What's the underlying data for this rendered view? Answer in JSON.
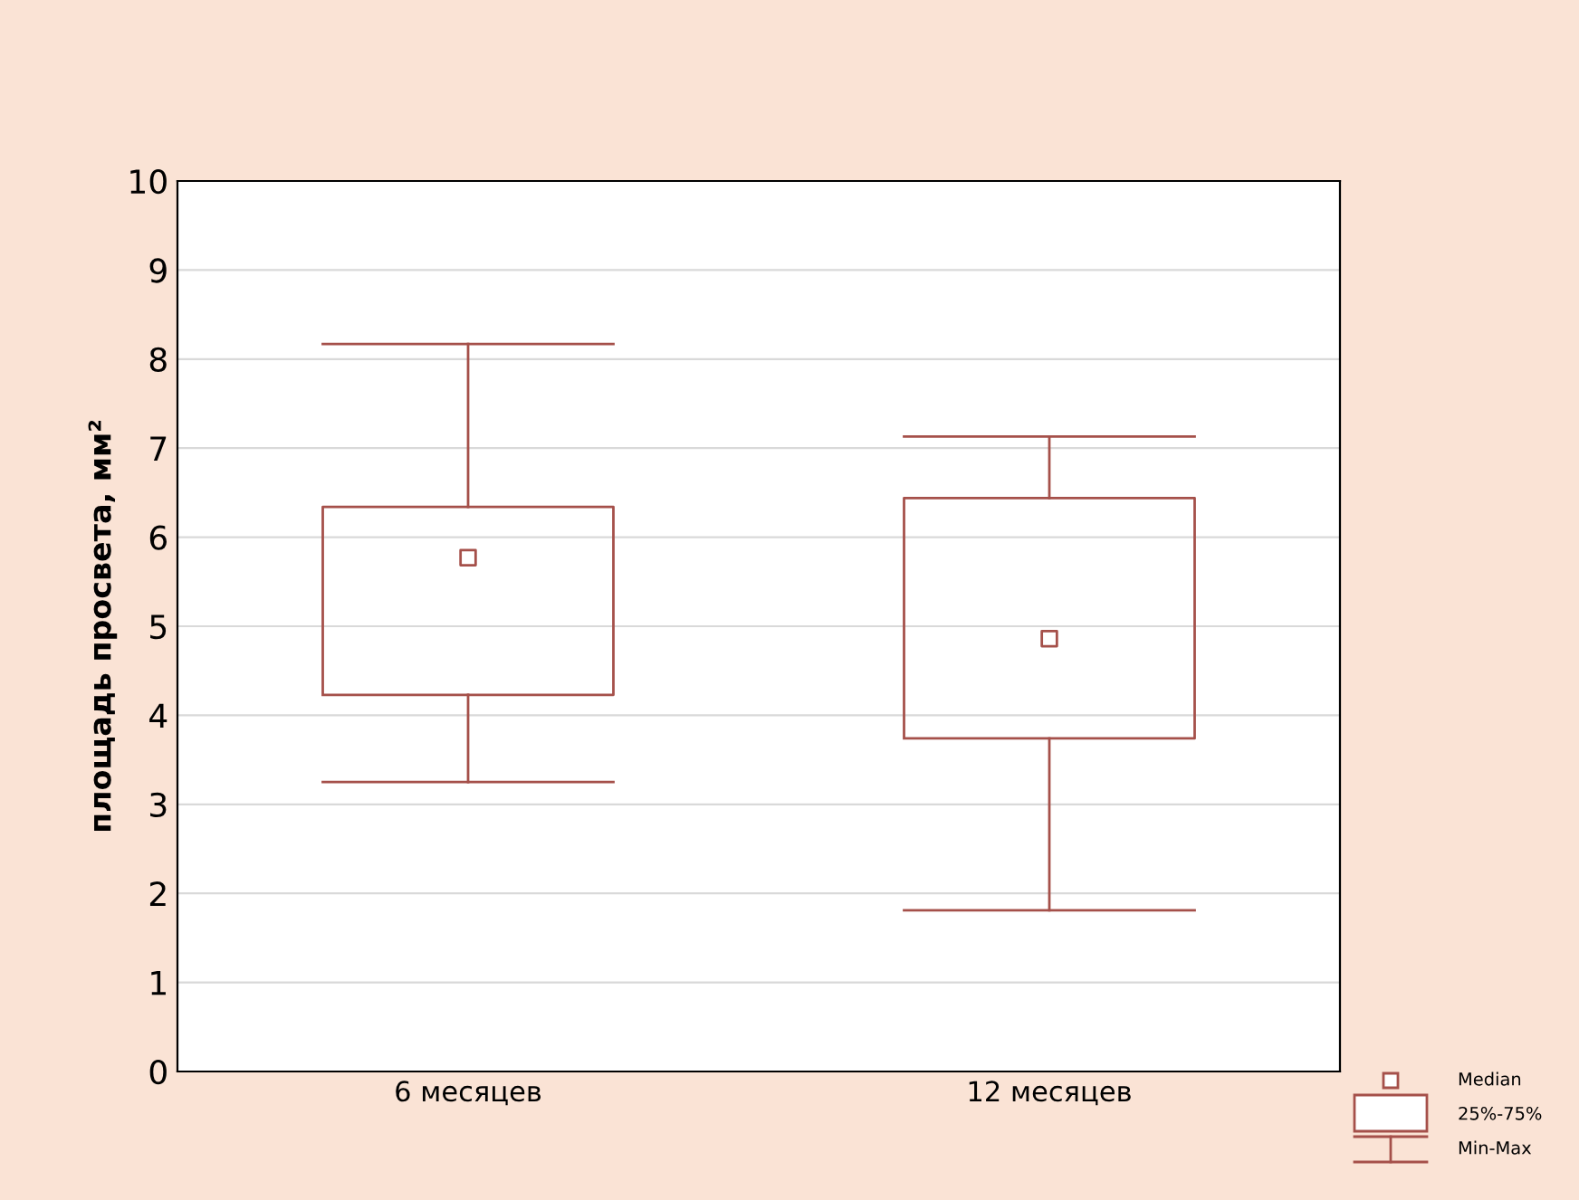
{
  "chart_data": {
    "type": "box",
    "ylabel": "площадь просвета, мм²",
    "categories": [
      "6 месяцев",
      "12 месяцев"
    ],
    "series": [
      {
        "color": "#a5504a",
        "boxes": [
          {
            "low": 3.25,
            "q1": 4.23,
            "median": 5.77,
            "q3": 6.34,
            "high": 8.17
          },
          {
            "low": 1.81,
            "q1": 3.74,
            "median": 4.86,
            "q3": 6.44,
            "high": 7.13
          }
        ]
      }
    ],
    "ylim": [
      0,
      10
    ],
    "yticks": [
      0,
      1,
      2,
      3,
      4,
      5,
      6,
      7,
      8,
      9,
      10
    ],
    "grid": "y",
    "marker": "square",
    "annotations": [
      "Median",
      "25%-75%",
      "Min-Max"
    ]
  }
}
